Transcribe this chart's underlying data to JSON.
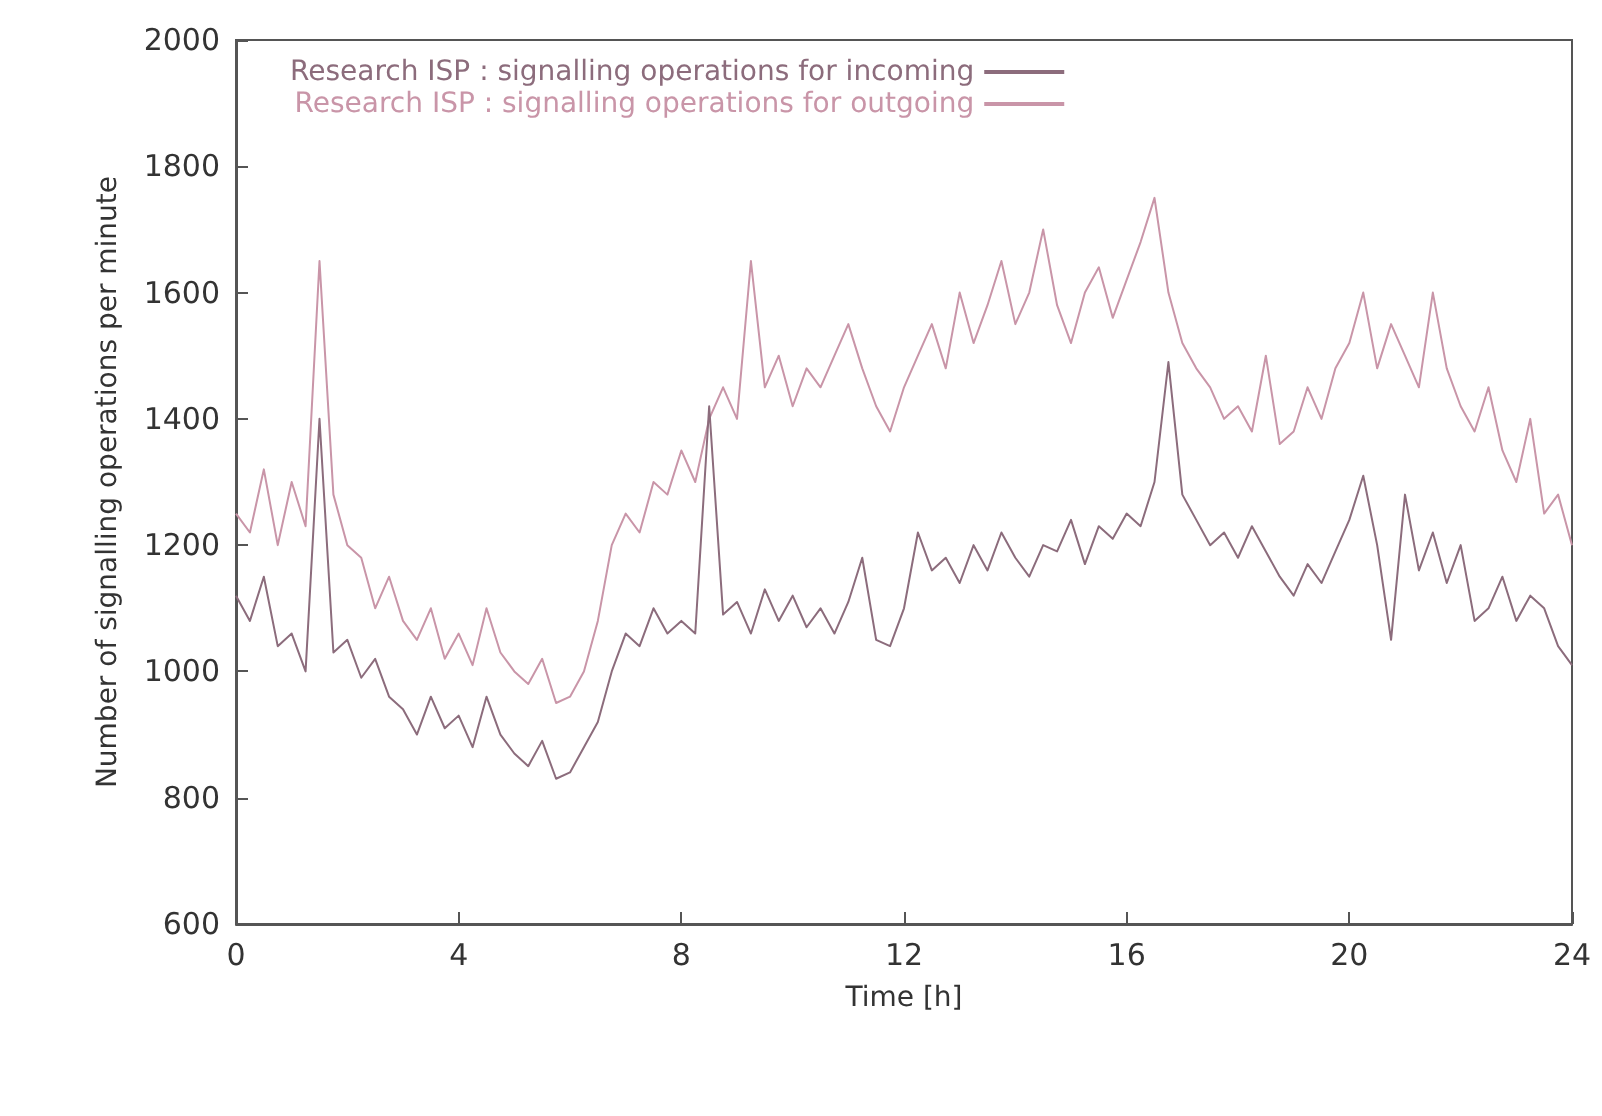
{
  "chart_data": {
    "type": "line",
    "xlabel": "Time [h]",
    "ylabel": "Number of signalling operations per minute",
    "x": [
      0,
      0.25,
      0.5,
      0.75,
      1,
      1.25,
      1.5,
      1.75,
      2,
      2.25,
      2.5,
      2.75,
      3,
      3.25,
      3.5,
      3.75,
      4,
      4.25,
      4.5,
      4.75,
      5,
      5.25,
      5.5,
      5.75,
      6,
      6.25,
      6.5,
      6.75,
      7,
      7.25,
      7.5,
      7.75,
      8,
      8.25,
      8.5,
      8.75,
      9,
      9.25,
      9.5,
      9.75,
      10,
      10.25,
      10.5,
      10.75,
      11,
      11.25,
      11.5,
      11.75,
      12,
      12.25,
      12.5,
      12.75,
      13,
      13.25,
      13.5,
      13.75,
      14,
      14.25,
      14.5,
      14.75,
      15,
      15.25,
      15.5,
      15.75,
      16,
      16.25,
      16.5,
      16.75,
      17,
      17.25,
      17.5,
      17.75,
      18,
      18.25,
      18.5,
      18.75,
      19,
      19.25,
      19.5,
      19.75,
      20,
      20.25,
      20.5,
      20.75,
      21,
      21.25,
      21.5,
      21.75,
      22,
      22.25,
      22.5,
      22.75,
      23,
      23.25,
      23.5,
      23.75,
      24
    ],
    "series": [
      {
        "name": "Research ISP : signalling operations for incoming",
        "color": "#8c6c7c",
        "values": [
          1120,
          1080,
          1150,
          1040,
          1060,
          1000,
          1400,
          1030,
          1050,
          990,
          1020,
          960,
          940,
          900,
          960,
          910,
          930,
          880,
          960,
          900,
          870,
          850,
          890,
          830,
          840,
          880,
          920,
          1000,
          1060,
          1040,
          1100,
          1060,
          1080,
          1060,
          1420,
          1090,
          1110,
          1060,
          1130,
          1080,
          1120,
          1070,
          1100,
          1060,
          1110,
          1180,
          1050,
          1040,
          1100,
          1220,
          1160,
          1180,
          1140,
          1200,
          1160,
          1220,
          1180,
          1150,
          1200,
          1190,
          1240,
          1170,
          1230,
          1210,
          1250,
          1230,
          1300,
          1490,
          1280,
          1240,
          1200,
          1220,
          1180,
          1230,
          1190,
          1150,
          1120,
          1170,
          1140,
          1190,
          1240,
          1310,
          1200,
          1050,
          1280,
          1160,
          1220,
          1140,
          1200,
          1080,
          1100,
          1150,
          1080,
          1120,
          1100,
          1040,
          1010
        ]
      },
      {
        "name": "Research ISP : signalling operations for outgoing",
        "color": "#c995a8",
        "values": [
          1250,
          1220,
          1320,
          1200,
          1300,
          1230,
          1650,
          1280,
          1200,
          1180,
          1100,
          1150,
          1080,
          1050,
          1100,
          1020,
          1060,
          1010,
          1100,
          1030,
          1000,
          980,
          1020,
          950,
          960,
          1000,
          1080,
          1200,
          1250,
          1220,
          1300,
          1280,
          1350,
          1300,
          1400,
          1450,
          1400,
          1650,
          1450,
          1500,
          1420,
          1480,
          1450,
          1500,
          1550,
          1480,
          1420,
          1380,
          1450,
          1500,
          1550,
          1480,
          1600,
          1520,
          1580,
          1650,
          1550,
          1600,
          1700,
          1580,
          1520,
          1600,
          1640,
          1560,
          1620,
          1680,
          1750,
          1600,
          1520,
          1480,
          1450,
          1400,
          1420,
          1380,
          1500,
          1360,
          1380,
          1450,
          1400,
          1480,
          1520,
          1600,
          1480,
          1550,
          1500,
          1450,
          1600,
          1480,
          1420,
          1380,
          1450,
          1350,
          1300,
          1400,
          1250,
          1280,
          1200
        ]
      }
    ],
    "xlim": [
      0,
      24
    ],
    "xticks": [
      0,
      4,
      8,
      12,
      16,
      20,
      24
    ],
    "ylim": [
      600,
      2000
    ],
    "yticks": [
      600,
      800,
      1000,
      1200,
      1400,
      1600,
      1800,
      2000
    ],
    "grid": false,
    "legend": "top",
    "marker": "none",
    "line_style": "solid"
  }
}
